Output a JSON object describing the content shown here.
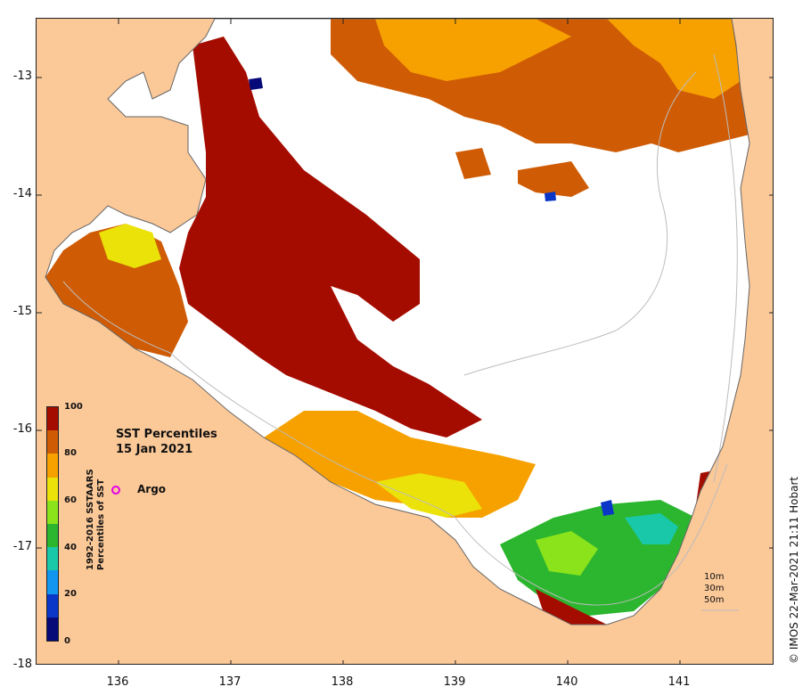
{
  "title": {
    "line1": "SST Percentiles",
    "line2": "15 Jan 2021"
  },
  "credit": "© IMOS 22-Mar-2021 21:11 Hobart",
  "axes": {
    "y_ticks": [
      "-13",
      "-14",
      "-15",
      "-16",
      "-17",
      "-18"
    ],
    "x_ticks": [
      "136",
      "137",
      "138",
      "139",
      "140",
      "141"
    ],
    "lon_range": [
      135.3,
      141.8
    ],
    "lat_range": [
      -18.0,
      -12.5
    ]
  },
  "colorbar": {
    "axis_line1": "1992-2016 SSTAARS",
    "axis_line2": "Percentiles of SST",
    "ticks": [
      "100",
      "80",
      "60",
      "40",
      "20",
      "0"
    ],
    "bands": [
      {
        "from": 90,
        "to": 100,
        "color": "#a50c00"
      },
      {
        "from": 80,
        "to": 90,
        "color": "#cf5c05"
      },
      {
        "from": 70,
        "to": 80,
        "color": "#f6a100"
      },
      {
        "from": 60,
        "to": 70,
        "color": "#ebe20a"
      },
      {
        "from": 50,
        "to": 60,
        "color": "#8be31c"
      },
      {
        "from": 40,
        "to": 50,
        "color": "#2cb62f"
      },
      {
        "from": 30,
        "to": 40,
        "color": "#19c8a8"
      },
      {
        "from": 20,
        "to": 30,
        "color": "#1296f0"
      },
      {
        "from": 10,
        "to": 20,
        "color": "#0a37c8"
      },
      {
        "from": 0,
        "to": 10,
        "color": "#060a78"
      }
    ]
  },
  "legend": {
    "marker_label": "Argo",
    "marker_color": "#e600e6"
  },
  "depth_contours": [
    "10m",
    "30m",
    "50m"
  ],
  "colors": {
    "land": "#fbc898",
    "no_data": "#ffffff"
  }
}
